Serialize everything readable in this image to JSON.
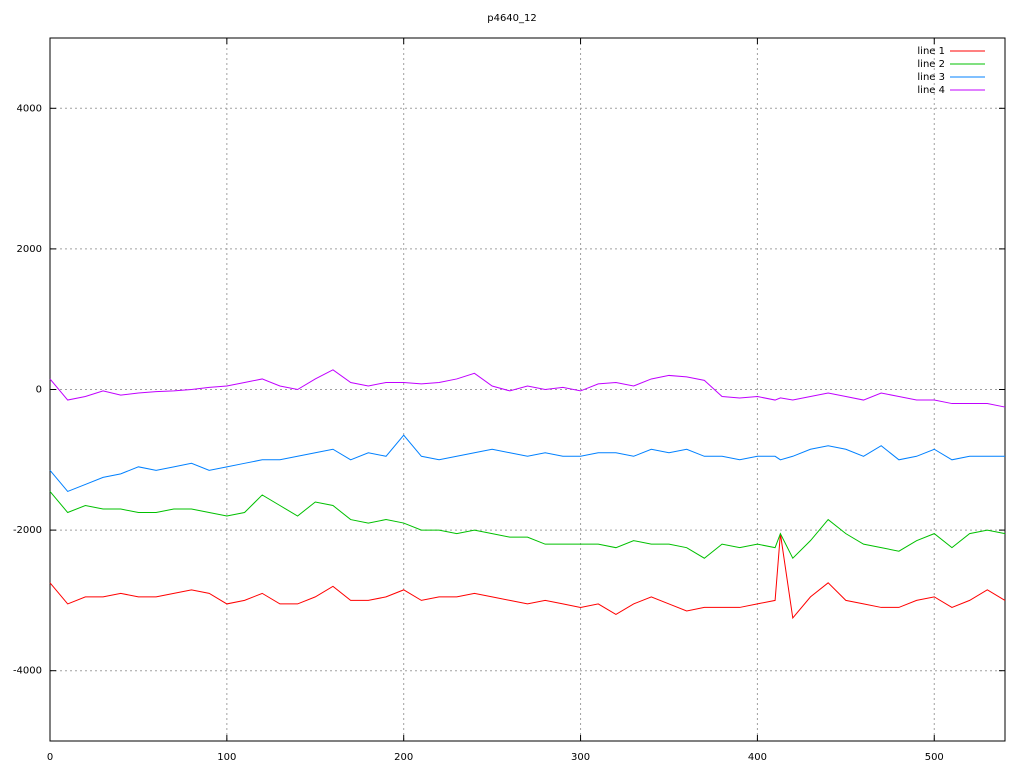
{
  "chart_data": {
    "type": "line",
    "title": "p4640_12",
    "x": [
      0,
      10,
      20,
      30,
      40,
      50,
      60,
      70,
      80,
      90,
      100,
      110,
      120,
      130,
      140,
      150,
      160,
      170,
      180,
      190,
      200,
      210,
      220,
      230,
      240,
      250,
      260,
      270,
      280,
      290,
      300,
      310,
      320,
      330,
      340,
      350,
      360,
      370,
      380,
      390,
      400,
      410,
      413,
      420,
      430,
      440,
      450,
      460,
      470,
      480,
      490,
      500,
      510,
      520,
      530,
      540
    ],
    "series": [
      {
        "name": "line 1",
        "color": "#ff0000",
        "values": [
          -2750,
          -3050,
          -2950,
          -2950,
          -2900,
          -2950,
          -2950,
          -2900,
          -2850,
          -2900,
          -3050,
          -3000,
          -2900,
          -3050,
          -3050,
          -2950,
          -2800,
          -3000,
          -3000,
          -2950,
          -2850,
          -3000,
          -2950,
          -2950,
          -2900,
          -2950,
          -3000,
          -3050,
          -3000,
          -3050,
          -3100,
          -3050,
          -3200,
          -3050,
          -2950,
          -3050,
          -3150,
          -3100,
          -3100,
          -3100,
          -3050,
          -3000,
          -2050,
          -3250,
          -2950,
          -2750,
          -3000,
          -3050,
          -3100,
          -3100,
          -3000,
          -2950,
          -3100,
          -3000,
          -2850,
          -3000
        ]
      },
      {
        "name": "line 2",
        "color": "#00c000",
        "values": [
          -1450,
          -1750,
          -1650,
          -1700,
          -1700,
          -1750,
          -1750,
          -1700,
          -1700,
          -1750,
          -1800,
          -1750,
          -1500,
          -1650,
          -1800,
          -1600,
          -1650,
          -1850,
          -1900,
          -1850,
          -1900,
          -2000,
          -2000,
          -2050,
          -2000,
          -2050,
          -2100,
          -2100,
          -2200,
          -2200,
          -2200,
          -2200,
          -2250,
          -2150,
          -2200,
          -2200,
          -2250,
          -2400,
          -2200,
          -2250,
          -2200,
          -2250,
          -2050,
          -2400,
          -2150,
          -1850,
          -2050,
          -2200,
          -2250,
          -2300,
          -2150,
          -2050,
          -2250,
          -2050,
          -2000,
          -2050
        ]
      },
      {
        "name": "line 3",
        "color": "#0080ff",
        "values": [
          -1150,
          -1450,
          -1350,
          -1250,
          -1200,
          -1100,
          -1150,
          -1100,
          -1050,
          -1150,
          -1100,
          -1050,
          -1000,
          -1000,
          -950,
          -900,
          -850,
          -1000,
          -900,
          -950,
          -650,
          -950,
          -1000,
          -950,
          -900,
          -850,
          -900,
          -950,
          -900,
          -950,
          -950,
          -900,
          -900,
          -950,
          -850,
          -900,
          -850,
          -950,
          -950,
          -1000,
          -950,
          -950,
          -1000,
          -950,
          -850,
          -800,
          -850,
          -950,
          -800,
          -1000,
          -950,
          -850,
          -1000,
          -950,
          -950,
          -950
        ]
      },
      {
        "name": "line 4",
        "color": "#c000ff",
        "values": [
          150,
          -150,
          -100,
          -20,
          -80,
          -50,
          -30,
          -20,
          0,
          30,
          50,
          100,
          150,
          50,
          0,
          150,
          280,
          100,
          50,
          100,
          100,
          80,
          100,
          150,
          230,
          50,
          -20,
          50,
          0,
          30,
          -20,
          80,
          100,
          50,
          150,
          200,
          180,
          130,
          -100,
          -120,
          -100,
          -150,
          -120,
          -150,
          -100,
          -50,
          -100,
          -150,
          -50,
          -100,
          -150,
          -150,
          -200,
          -200,
          -200,
          -250
        ]
      }
    ],
    "xlim": [
      0,
      540
    ],
    "xticks": [
      0,
      100,
      200,
      300,
      400,
      500
    ],
    "ylim": [
      -5000,
      5000
    ],
    "yticks": [
      -4000,
      -2000,
      0,
      2000,
      4000
    ],
    "grid": true,
    "legend": "top-right"
  }
}
